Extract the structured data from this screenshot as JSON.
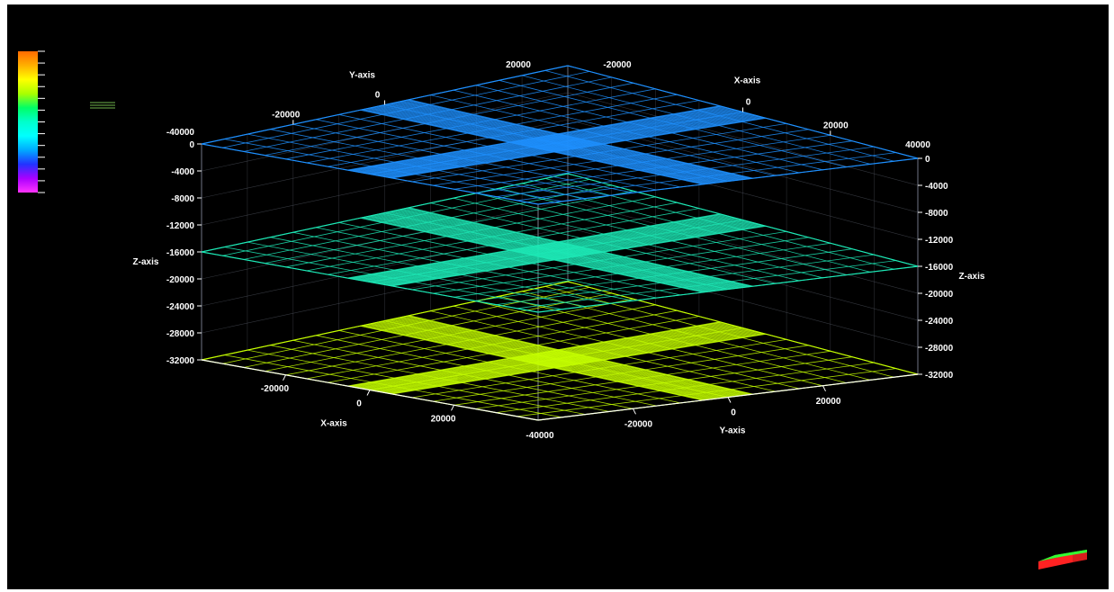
{
  "viewer": {
    "background": "#000000",
    "frame_color": "#ffffff",
    "axis_line_color": "#9aa3b5"
  },
  "colorbar": {
    "stops": [
      "#ff6a00",
      "#ffb000",
      "#ffff00",
      "#aaff00",
      "#00ff66",
      "#00ffcc",
      "#00ffff",
      "#00aaff",
      "#2233ff",
      "#aa00ff",
      "#ff33ff"
    ],
    "tick_count": 13,
    "tick_color": "#ffffff"
  },
  "legend_icon": {
    "name": "legend-lines-icon",
    "color": "#5a8f3c"
  },
  "orientation_cube": {
    "name": "orientation-cube-icon",
    "top_color": "#33ff33",
    "side_color": "#ff2222"
  },
  "chart_data": {
    "type": "surface-3d-mesh",
    "axes": {
      "x": {
        "label": "X-axis",
        "range": [
          -40000,
          40000
        ],
        "ticks": [
          "-20000",
          "0",
          "20000",
          "40000"
        ],
        "back_ticks": [
          "-40000",
          "-20000",
          "0",
          "20000",
          "40000"
        ]
      },
      "y": {
        "label": "Y-axis",
        "range": [
          -40000,
          40000
        ],
        "ticks": [
          "-40000",
          "-20000",
          "0",
          "20000"
        ],
        "back_ticks": [
          "20000",
          "0",
          "-20000"
        ]
      },
      "z": {
        "label": "Z-axis",
        "range": [
          -32000,
          0
        ],
        "ticks": [
          "0",
          "-4000",
          "-8000",
          "-12000",
          "-16000",
          "-20000",
          "-24000",
          "-28000",
          "-32000"
        ]
      }
    },
    "front_x_labels": [
      "-20000",
      "0",
      "20000"
    ],
    "front_x_corner": "-40000",
    "front_y_labels": [
      "-20000",
      "0",
      "20000"
    ],
    "back_left_labels": [
      "-20000",
      "0"
    ],
    "back_left_corner": "-40000",
    "back_top_labels": [
      "20000",
      "-20000"
    ],
    "back_right_labels": [
      "0",
      "20000"
    ],
    "back_right_corner": "40000",
    "series": [
      {
        "z": 0,
        "color": "#1e90ff"
      },
      {
        "z": -16000,
        "color": "#1de9b6"
      },
      {
        "z": -32000,
        "color": "#c6ff00"
      }
    ],
    "grid": true
  }
}
